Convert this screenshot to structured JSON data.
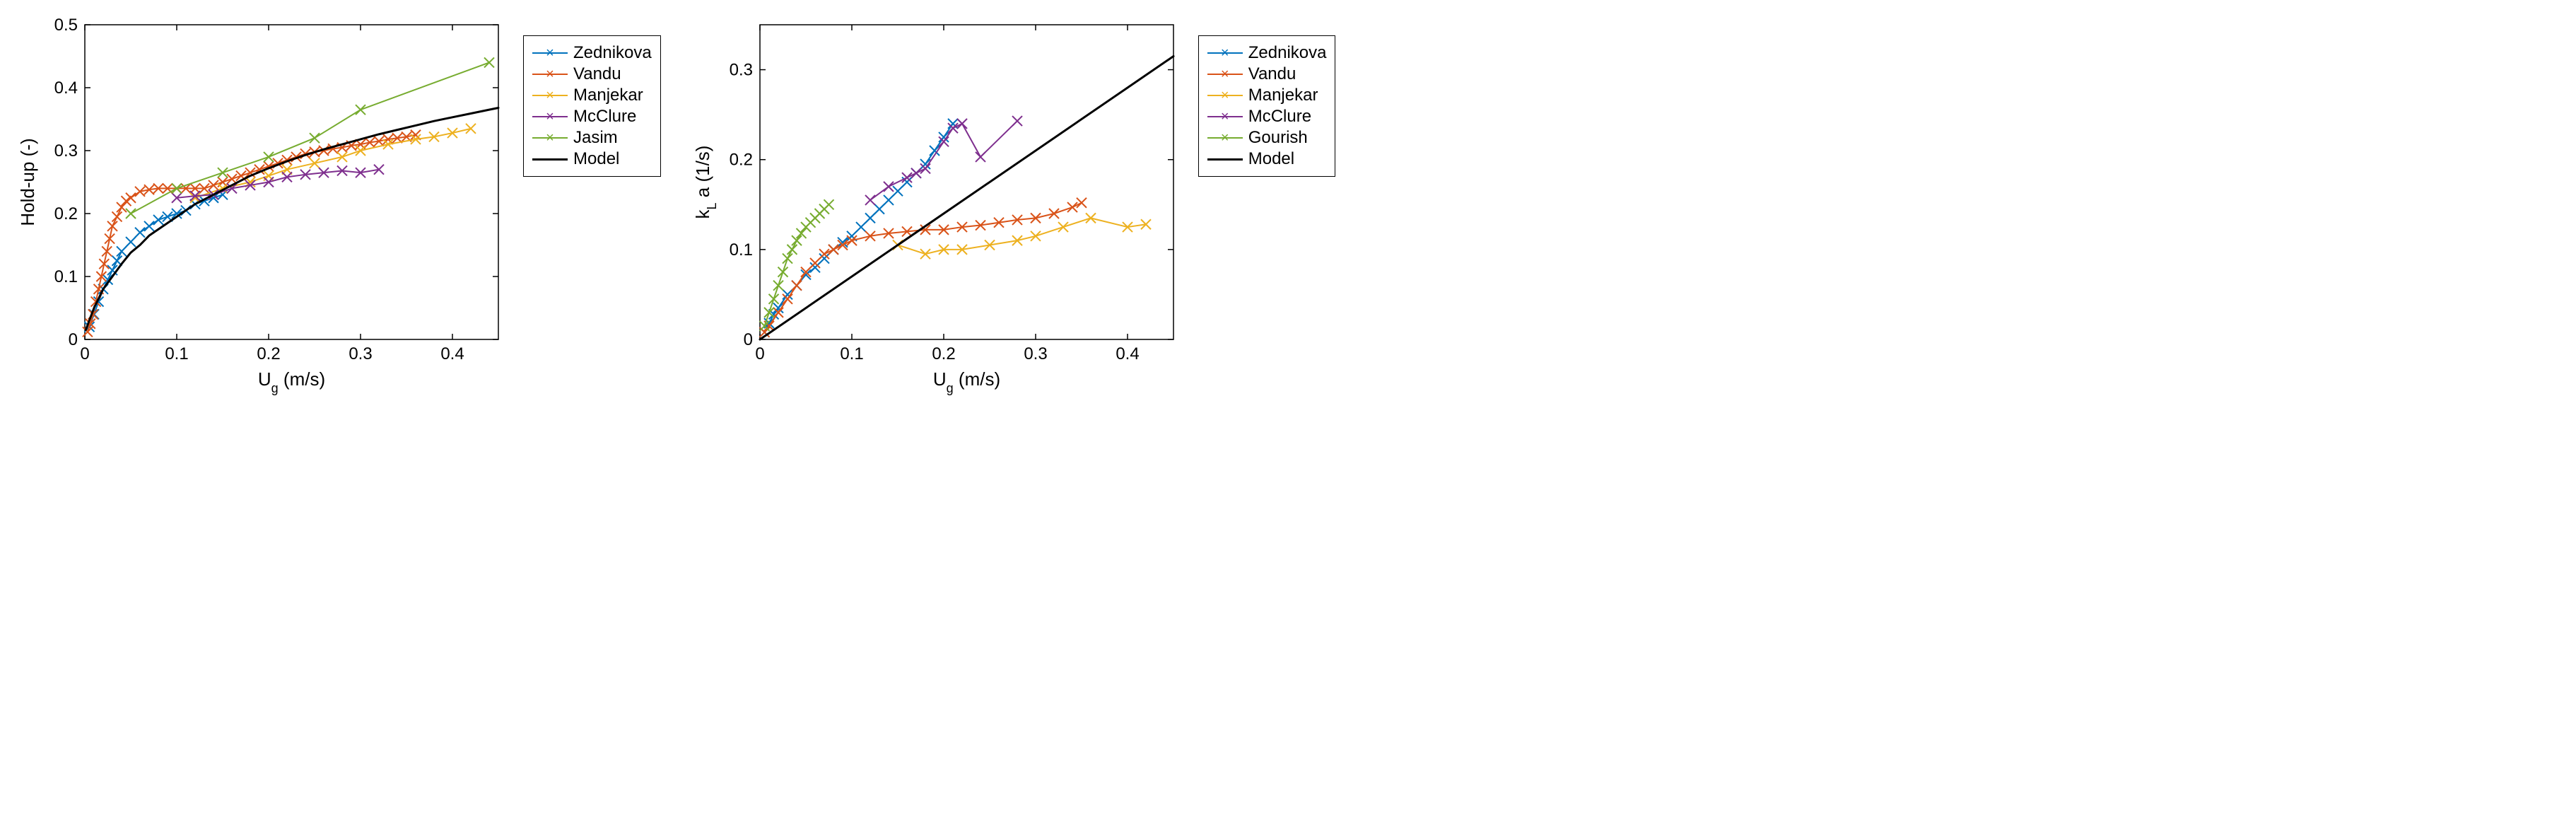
{
  "figure": {
    "background_color": "#ffffff",
    "font_family": "Arial, Helvetica, sans-serif",
    "axis_fontsize": 26,
    "tick_fontsize": 24,
    "legend_fontsize": 24,
    "marker": "x",
    "marker_size": 14,
    "line_width": 2,
    "model_line_width": 3
  },
  "colors": {
    "blue": "#0072bd",
    "orange": "#d95319",
    "yellow": "#edb120",
    "purple": "#7e2f8e",
    "green": "#77ac30",
    "black": "#000000",
    "box": "#000000",
    "tick": "#000000"
  },
  "left_chart": {
    "type": "scatter_line",
    "xlabel": "U_g (m/s)",
    "ylabel": "Hold-up (-)",
    "xlim": [
      0,
      0.45
    ],
    "ylim": [
      0,
      0.5
    ],
    "xticks": [
      0,
      0.1,
      0.2,
      0.3,
      0.4
    ],
    "yticks": [
      0,
      0.1,
      0.2,
      0.3,
      0.4,
      0.5
    ],
    "legend": [
      "Zednikova",
      "Vandu",
      "Manjekar",
      "McClure",
      "Jasim",
      "Model"
    ],
    "legend_colors": [
      "blue",
      "orange",
      "yellow",
      "purple",
      "green",
      "black"
    ],
    "legend_has_marker": [
      true,
      true,
      true,
      true,
      true,
      false
    ],
    "series": {
      "Zednikova": {
        "color": "blue",
        "x": [
          0.005,
          0.01,
          0.015,
          0.02,
          0.025,
          0.03,
          0.035,
          0.04,
          0.05,
          0.06,
          0.07,
          0.08,
          0.09,
          0.1,
          0.11,
          0.12,
          0.13,
          0.14,
          0.15
        ],
        "y": [
          0.02,
          0.04,
          0.06,
          0.08,
          0.095,
          0.11,
          0.125,
          0.14,
          0.155,
          0.17,
          0.18,
          0.19,
          0.195,
          0.2,
          0.205,
          0.215,
          0.22,
          0.225,
          0.23
        ]
      },
      "Vandu": {
        "color": "orange",
        "x": [
          0.003,
          0.006,
          0.009,
          0.012,
          0.015,
          0.018,
          0.021,
          0.024,
          0.027,
          0.03,
          0.035,
          0.04,
          0.045,
          0.05,
          0.06,
          0.07,
          0.08,
          0.09,
          0.1,
          0.11,
          0.12,
          0.13,
          0.14,
          0.15,
          0.16,
          0.17,
          0.18,
          0.19,
          0.2,
          0.21,
          0.22,
          0.23,
          0.24,
          0.25,
          0.26,
          0.27,
          0.28,
          0.29,
          0.3,
          0.31,
          0.32,
          0.33,
          0.34,
          0.35,
          0.36
        ],
        "y": [
          0.012,
          0.025,
          0.04,
          0.06,
          0.08,
          0.1,
          0.12,
          0.14,
          0.16,
          0.18,
          0.195,
          0.21,
          0.22,
          0.225,
          0.235,
          0.238,
          0.24,
          0.24,
          0.24,
          0.24,
          0.24,
          0.24,
          0.245,
          0.25,
          0.255,
          0.26,
          0.265,
          0.27,
          0.275,
          0.28,
          0.285,
          0.29,
          0.295,
          0.298,
          0.3,
          0.303,
          0.305,
          0.308,
          0.31,
          0.313,
          0.315,
          0.318,
          0.32,
          0.322,
          0.325
        ]
      },
      "Manjekar": {
        "color": "yellow",
        "x": [
          0.12,
          0.15,
          0.18,
          0.2,
          0.22,
          0.25,
          0.28,
          0.3,
          0.33,
          0.36,
          0.38,
          0.4,
          0.42
        ],
        "y": [
          0.225,
          0.24,
          0.25,
          0.26,
          0.27,
          0.28,
          0.29,
          0.3,
          0.31,
          0.318,
          0.322,
          0.328,
          0.335
        ]
      },
      "McClure": {
        "color": "purple",
        "x": [
          0.1,
          0.12,
          0.14,
          0.16,
          0.18,
          0.2,
          0.22,
          0.24,
          0.26,
          0.28,
          0.3,
          0.32
        ],
        "y": [
          0.225,
          0.228,
          0.23,
          0.24,
          0.245,
          0.25,
          0.258,
          0.262,
          0.265,
          0.268,
          0.265,
          0.27
        ]
      },
      "Jasim": {
        "color": "green",
        "x": [
          0.05,
          0.1,
          0.15,
          0.2,
          0.25,
          0.3,
          0.44
        ],
        "y": [
          0.2,
          0.24,
          0.265,
          0.29,
          0.32,
          0.365,
          0.44
        ]
      },
      "Model": {
        "color": "black",
        "x": [
          0.001,
          0.01,
          0.02,
          0.03,
          0.04,
          0.05,
          0.06,
          0.07,
          0.08,
          0.09,
          0.1,
          0.12,
          0.14,
          0.16,
          0.18,
          0.2,
          0.22,
          0.24,
          0.26,
          0.28,
          0.3,
          0.32,
          0.34,
          0.36,
          0.38,
          0.4,
          0.42,
          0.44,
          0.45
        ],
        "y": [
          0.015,
          0.05,
          0.08,
          0.1,
          0.12,
          0.138,
          0.15,
          0.165,
          0.175,
          0.185,
          0.195,
          0.215,
          0.23,
          0.245,
          0.26,
          0.272,
          0.283,
          0.293,
          0.302,
          0.31,
          0.318,
          0.326,
          0.333,
          0.34,
          0.347,
          0.353,
          0.359,
          0.365,
          0.368
        ]
      }
    }
  },
  "right_chart": {
    "type": "scatter_line",
    "xlabel": "U_g (m/s)",
    "ylabel": "k_L a (1/s)",
    "xlim": [
      0,
      0.45
    ],
    "ylim": [
      0,
      0.35
    ],
    "xticks": [
      0,
      0.1,
      0.2,
      0.3,
      0.4
    ],
    "yticks": [
      0,
      0.1,
      0.2,
      0.3
    ],
    "legend": [
      "Zednikova",
      "Vandu",
      "Manjekar",
      "McClure",
      "Gourish",
      "Model"
    ],
    "legend_colors": [
      "blue",
      "orange",
      "yellow",
      "purple",
      "green",
      "black"
    ],
    "legend_has_marker": [
      true,
      true,
      true,
      true,
      true,
      false
    ],
    "series": {
      "Zednikova": {
        "color": "blue",
        "x": [
          0.005,
          0.01,
          0.015,
          0.02,
          0.03,
          0.04,
          0.05,
          0.06,
          0.07,
          0.08,
          0.09,
          0.1,
          0.11,
          0.12,
          0.13,
          0.14,
          0.15,
          0.16,
          0.17,
          0.18,
          0.19,
          0.2,
          0.21
        ],
        "y": [
          0.008,
          0.018,
          0.028,
          0.035,
          0.05,
          0.06,
          0.072,
          0.08,
          0.09,
          0.1,
          0.108,
          0.115,
          0.125,
          0.135,
          0.145,
          0.155,
          0.165,
          0.175,
          0.185,
          0.195,
          0.21,
          0.225,
          0.24
        ]
      },
      "Vandu": {
        "color": "orange",
        "x": [
          0.005,
          0.01,
          0.02,
          0.03,
          0.04,
          0.05,
          0.06,
          0.07,
          0.08,
          0.09,
          0.1,
          0.12,
          0.14,
          0.16,
          0.18,
          0.2,
          0.22,
          0.24,
          0.26,
          0.28,
          0.3,
          0.32,
          0.34,
          0.35
        ],
        "y": [
          0.008,
          0.015,
          0.03,
          0.045,
          0.06,
          0.075,
          0.085,
          0.095,
          0.1,
          0.105,
          0.11,
          0.115,
          0.118,
          0.12,
          0.122,
          0.122,
          0.125,
          0.127,
          0.13,
          0.133,
          0.135,
          0.14,
          0.147,
          0.152
        ]
      },
      "Manjekar": {
        "color": "yellow",
        "x": [
          0.15,
          0.18,
          0.2,
          0.22,
          0.25,
          0.28,
          0.3,
          0.33,
          0.36,
          0.4,
          0.42
        ],
        "y": [
          0.105,
          0.095,
          0.1,
          0.1,
          0.105,
          0.11,
          0.115,
          0.125,
          0.135,
          0.125,
          0.128
        ]
      },
      "McClure": {
        "color": "purple",
        "x": [
          0.12,
          0.14,
          0.16,
          0.17,
          0.18,
          0.2,
          0.21,
          0.22,
          0.24,
          0.28
        ],
        "y": [
          0.155,
          0.17,
          0.18,
          0.185,
          0.19,
          0.22,
          0.235,
          0.24,
          0.203,
          0.243
        ]
      },
      "Gourish": {
        "color": "green",
        "x": [
          0.005,
          0.01,
          0.015,
          0.02,
          0.025,
          0.03,
          0.035,
          0.04,
          0.045,
          0.05,
          0.055,
          0.06,
          0.065,
          0.07,
          0.075
        ],
        "y": [
          0.015,
          0.03,
          0.045,
          0.06,
          0.075,
          0.09,
          0.1,
          0.11,
          0.118,
          0.125,
          0.13,
          0.135,
          0.14,
          0.145,
          0.15
        ]
      },
      "Model": {
        "color": "black",
        "x": [
          0.0,
          0.45
        ],
        "y": [
          0.0,
          0.315
        ]
      }
    }
  }
}
